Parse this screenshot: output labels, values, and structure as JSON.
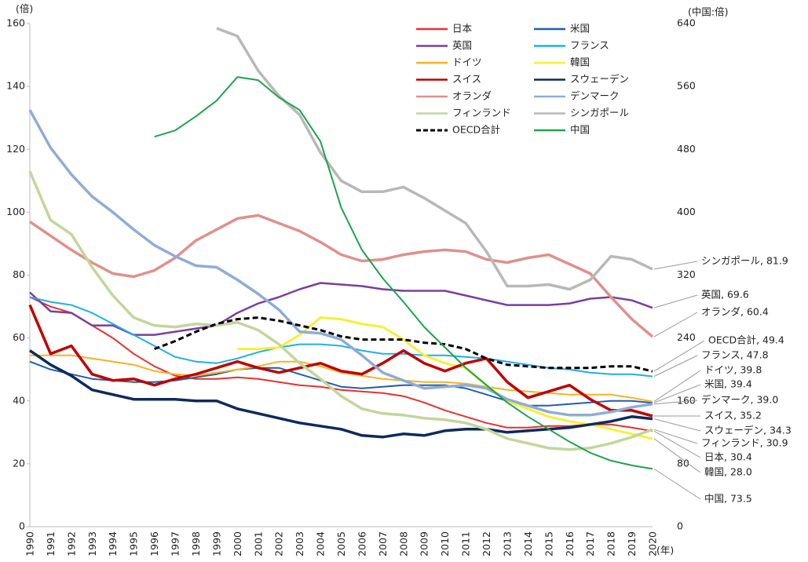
{
  "chart_data": {
    "type": "line",
    "y_label": "(倍)",
    "y2_label": "(中国:倍)",
    "x_label": "(年)",
    "categories": [
      "1990",
      "1991",
      "1992",
      "1993",
      "1994",
      "1995",
      "1996",
      "1997",
      "1998",
      "1999",
      "2000",
      "2001",
      "2002",
      "2003",
      "2004",
      "2005",
      "2006",
      "2007",
      "2008",
      "2009",
      "2010",
      "2011",
      "2012",
      "2013",
      "2014",
      "2015",
      "2016",
      "2017",
      "2018",
      "2019",
      "2020"
    ],
    "ylim": [
      0,
      160
    ],
    "yticks": [
      0,
      20,
      40,
      60,
      80,
      100,
      120,
      140,
      160
    ],
    "y2lim": [
      0,
      640
    ],
    "y2ticks": [
      0,
      80,
      160,
      240,
      320,
      400,
      480,
      560,
      640
    ],
    "series": [
      {
        "name": "日本",
        "color": "#e8312f",
        "values": [
          73,
          70,
          68,
          64,
          60,
          55,
          51,
          48,
          47,
          47,
          47.5,
          47,
          46,
          45,
          44.5,
          43.5,
          43,
          42.5,
          41.5,
          39.5,
          37,
          35,
          33,
          31.5,
          31.5,
          32,
          32,
          32.5,
          32.5,
          31.5,
          30.4
        ]
      },
      {
        "name": "米国",
        "color": "#1f5fae",
        "values": [
          52.5,
          50,
          48.5,
          47,
          46.5,
          46,
          46,
          46.5,
          47.5,
          48.5,
          50,
          50.5,
          50.5,
          48.5,
          46.5,
          44.5,
          44,
          44.5,
          45,
          45,
          45,
          44,
          42,
          40,
          38.5,
          38.5,
          39,
          39.5,
          40,
          40,
          39.4
        ]
      },
      {
        "name": "英国",
        "color": "#7a3f9d",
        "values": [
          74.5,
          68.5,
          68,
          64,
          64,
          61,
          61,
          62,
          63,
          64,
          68,
          71,
          73,
          75.5,
          77.5,
          77,
          76.5,
          75.5,
          75,
          75,
          75,
          73.5,
          72,
          70.5,
          70.5,
          70.5,
          71,
          72.5,
          73,
          72,
          69.6
        ]
      },
      {
        "name": "フランス",
        "color": "#1fb0e6",
        "values": [
          73,
          71.5,
          70.5,
          68,
          64.5,
          61,
          57.5,
          54,
          52.5,
          52,
          53.5,
          55.5,
          57,
          58,
          58,
          57.5,
          56,
          55,
          55,
          54.5,
          54.5,
          54,
          53.5,
          52.5,
          51.5,
          50.5,
          50,
          49,
          48.5,
          48.5,
          47.8
        ]
      },
      {
        "name": "ドイツ",
        "color": "#f5b324",
        "values": [
          54.5,
          54.5,
          54.5,
          53.5,
          52.5,
          51.5,
          49.5,
          48.5,
          48,
          49,
          50,
          51,
          52.5,
          52.5,
          51,
          49,
          48,
          47,
          46.5,
          46,
          46,
          45.5,
          44.5,
          43.5,
          43,
          42.5,
          42,
          42,
          42,
          41,
          39.8
        ]
      },
      {
        "name": "韓国",
        "color": "#f7f035",
        "values": [
          null,
          null,
          null,
          null,
          null,
          null,
          null,
          null,
          null,
          null,
          56.5,
          56.5,
          57,
          61,
          66.5,
          66,
          64.5,
          63.5,
          59.5,
          54.5,
          52,
          50.5,
          45,
          40,
          37.5,
          35,
          33.5,
          32.5,
          31,
          29.5,
          28.0
        ]
      },
      {
        "name": "スイス",
        "color": "#c00000",
        "values": [
          70.5,
          55,
          57.5,
          48.5,
          46.5,
          47,
          45,
          47,
          48.5,
          50.5,
          52.5,
          50.5,
          49,
          50.5,
          52,
          49.5,
          48.5,
          52,
          56,
          52,
          49.5,
          52,
          53.5,
          46,
          41,
          43,
          45,
          40.5,
          37,
          37,
          35.2
        ]
      },
      {
        "name": "スウェーデン",
        "color": "#0e2a5c",
        "values": [
          56,
          51.5,
          48,
          43.5,
          42,
          40.5,
          40.5,
          40.5,
          40,
          40,
          37.5,
          36,
          34.5,
          33,
          32,
          31,
          29,
          28.5,
          29.5,
          29,
          30.5,
          31,
          31,
          30,
          30.5,
          31,
          31.5,
          32.5,
          33.5,
          35,
          34.3
        ]
      },
      {
        "name": "オランダ",
        "color": "#de918b",
        "values": [
          97,
          92.5,
          88,
          84,
          80.5,
          79.5,
          81.5,
          85.5,
          91,
          94.5,
          98,
          99,
          96.5,
          94,
          90.5,
          86.5,
          84.5,
          85,
          86.5,
          87.5,
          88,
          87.5,
          85,
          84,
          85.5,
          86.5,
          83.5,
          80.5,
          73,
          66,
          60.4
        ]
      },
      {
        "name": "デンマーク",
        "color": "#8eadd6",
        "values": [
          132.5,
          120.5,
          112,
          105,
          100,
          94.5,
          89.5,
          86,
          83,
          82.5,
          78.5,
          74,
          69,
          62,
          61.5,
          59.5,
          54.5,
          49,
          46.5,
          44,
          44.5,
          45,
          44,
          40.5,
          38.5,
          36.5,
          35.5,
          35.5,
          36.5,
          38,
          39.0
        ]
      },
      {
        "name": "フィンランド",
        "color": "#c3d69b",
        "values": [
          113,
          97.5,
          93,
          82.5,
          73.5,
          66.5,
          64,
          63.5,
          64.5,
          64,
          65,
          62.5,
          58,
          52,
          47,
          41.5,
          37.5,
          36,
          35.5,
          34.5,
          34,
          33,
          31,
          28,
          26.5,
          25,
          24.5,
          25,
          26.5,
          28.5,
          30.9
        ]
      },
      {
        "name": "シンガポール",
        "color": "#b8b8b8",
        "values": [
          null,
          null,
          null,
          null,
          null,
          null,
          null,
          null,
          null,
          158.5,
          156,
          145,
          137,
          131,
          119,
          110,
          106.5,
          106.5,
          108,
          104.5,
          100.5,
          96.5,
          87.5,
          76.5,
          76.5,
          77,
          75.5,
          78.5,
          86,
          85,
          81.9
        ]
      },
      {
        "name": "OECD合計",
        "color": "#000000",
        "style": "dashed",
        "values": [
          null,
          null,
          null,
          null,
          null,
          null,
          56.5,
          59,
          62,
          64.5,
          66,
          66.5,
          65.5,
          64,
          62.5,
          60.5,
          59.5,
          59.5,
          59.5,
          58.5,
          58,
          56.5,
          53.5,
          51.5,
          51,
          50.5,
          50.5,
          50.5,
          51,
          51,
          49.4
        ]
      },
      {
        "name": "中国",
        "color": "#1fa34a",
        "axis": "y2",
        "values": [
          null,
          null,
          null,
          null,
          null,
          null,
          496,
          504,
          522,
          542,
          572,
          568,
          546,
          530,
          490,
          406,
          352,
          316,
          286,
          254,
          228,
          202,
          180,
          158,
          140,
          124,
          108,
          94,
          84,
          78,
          73.5
        ]
      }
    ],
    "end_labels": [
      "日本, 30.4",
      "米国, 39.4",
      "英国, 69.6",
      "フランス, 47.8",
      "ドイツ, 39.8",
      "韓国, 28.0",
      "スイス, 35.2",
      "スウェーデン, 34.3",
      "オランダ, 60.4",
      "デンマーク, 39.0",
      "フィンランド, 30.9",
      "シンガポール, 81.9",
      "OECD合計, 49.4",
      "中国, 73.5"
    ]
  }
}
